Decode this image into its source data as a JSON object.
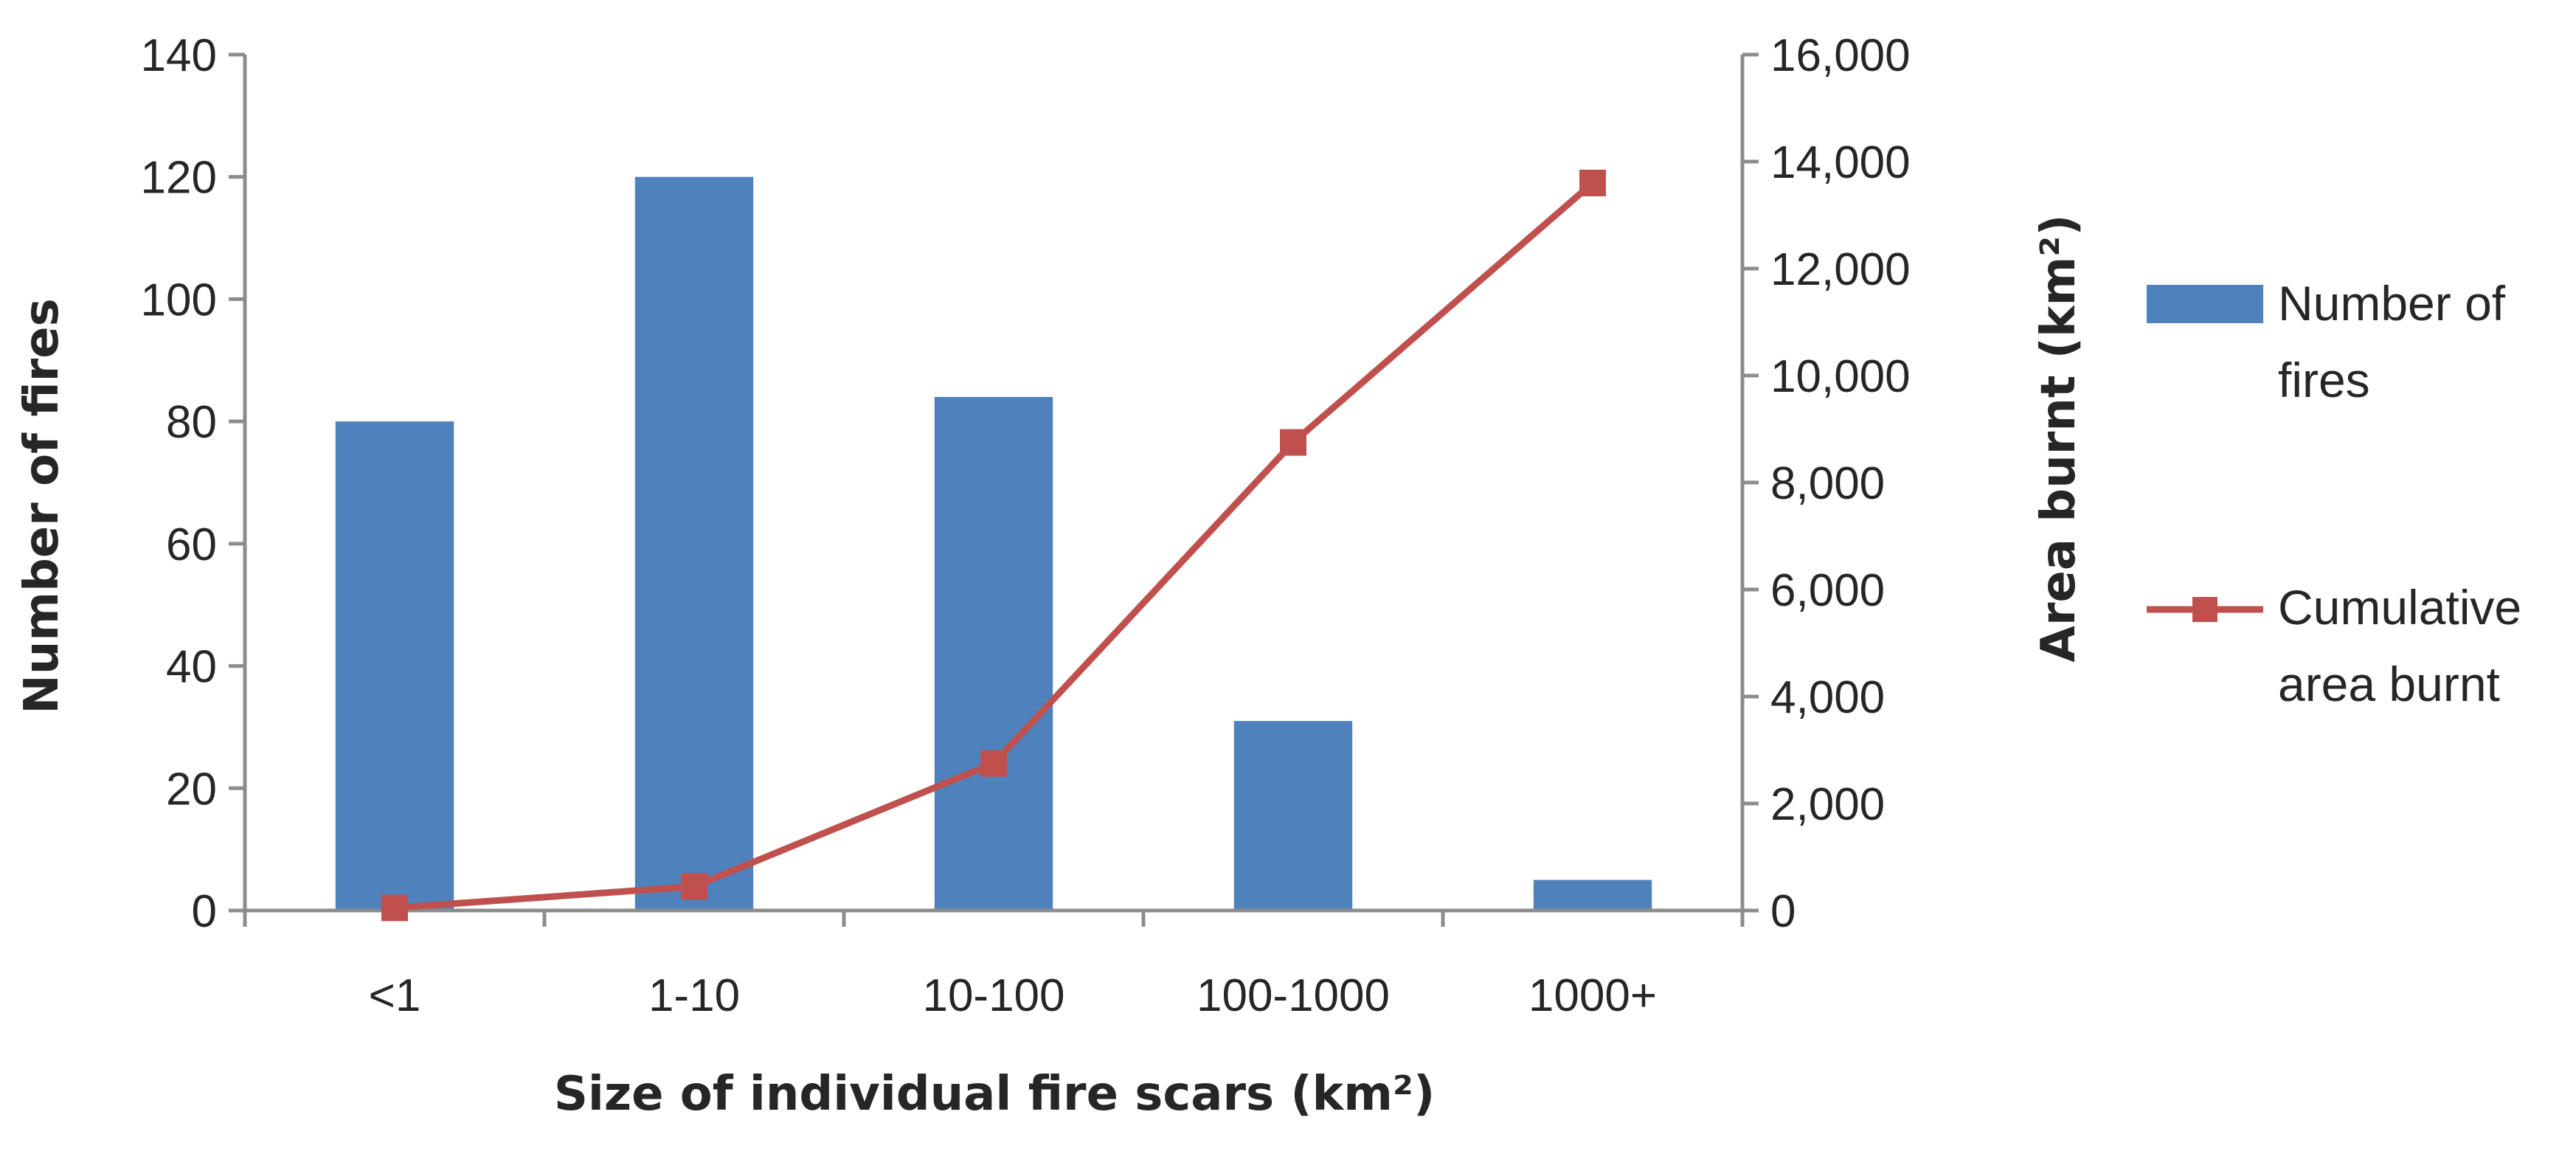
{
  "chart_data": {
    "type": "bar",
    "categories": [
      "<1",
      "1-10",
      "10-100",
      "100-1000",
      "1000+"
    ],
    "series": [
      {
        "name": "Number of fires",
        "type": "bar",
        "axis": "left",
        "values": [
          80,
          120,
          84,
          31,
          5
        ]
      },
      {
        "name": "Cumulative area burnt",
        "type": "line",
        "axis": "right",
        "values": [
          50,
          450,
          2750,
          8750,
          13600
        ]
      }
    ],
    "xlabel": "Size of individual fire scars (km²)",
    "ylabel": "Number of fires",
    "y2label": "Area burnt (km²)",
    "ylim": [
      0,
      140
    ],
    "y2lim": [
      0,
      16000
    ],
    "yticks": [
      "0",
      "20",
      "40",
      "60",
      "80",
      "100",
      "120",
      "140"
    ],
    "y2ticks": [
      "0",
      "2,000",
      "4,000",
      "6,000",
      "8,000",
      "10,000",
      "12,000",
      "14,000",
      "16,000"
    ],
    "legend": {
      "position": "right",
      "entries": [
        {
          "lines": [
            "Number of fires",
            "fires"
          ],
          "label_line1": "Number of",
          "label_line2": "fires"
        },
        {
          "label_line1": "Cumulative",
          "label_line2": "area burnt"
        }
      ]
    },
    "colors": {
      "bar": "#4f81bd",
      "line": "#c0504d",
      "axis": "#8c8c8c",
      "text": "#262626"
    },
    "grid": false
  }
}
